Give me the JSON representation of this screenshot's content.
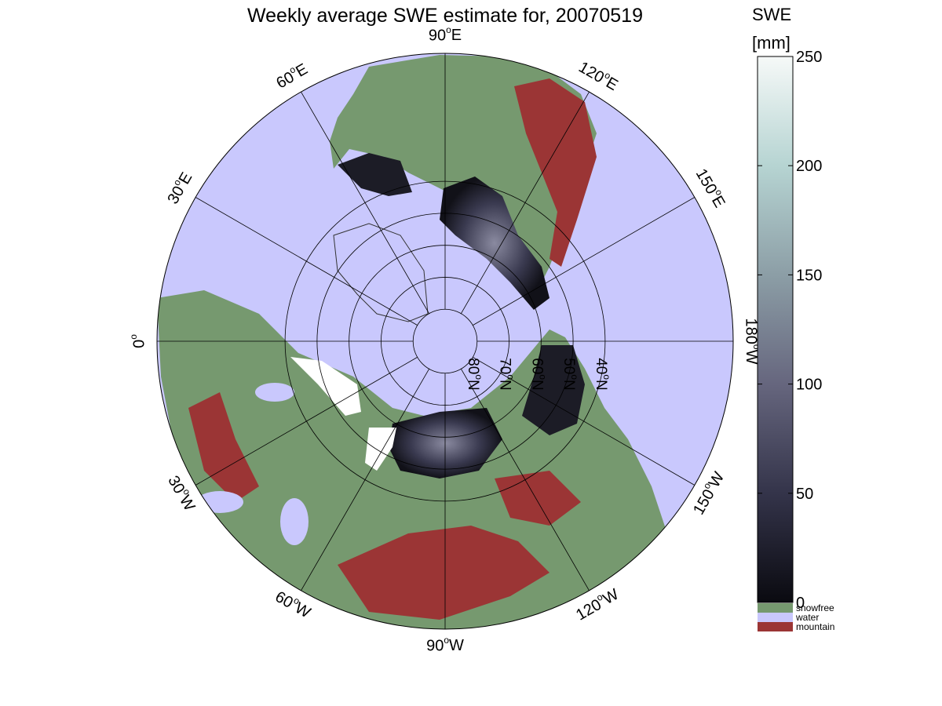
{
  "title": "Weekly average SWE estimate for, 20070519",
  "colorbar": {
    "title_line1": "SWE",
    "title_line2": "[mm]",
    "range": [
      0,
      250
    ],
    "ticks": [
      {
        "value": 0,
        "label": "0"
      },
      {
        "value": 50,
        "label": "50"
      },
      {
        "value": 100,
        "label": "100"
      },
      {
        "value": 150,
        "label": "150"
      },
      {
        "value": 200,
        "label": "200"
      },
      {
        "value": 250,
        "label": "250"
      }
    ],
    "gradient_colors": [
      "#0a0a10",
      "#34344a",
      "#66667e",
      "#8c9ea6",
      "#b6d4d2",
      "#f6f9f8"
    ]
  },
  "categories": [
    {
      "name": "snowfree",
      "color": "#76996f"
    },
    {
      "name": "water",
      "color": "#c9c8fd"
    },
    {
      "name": "mountain",
      "color": "#9b3535"
    }
  ],
  "map": {
    "projection": "north polar stereographic",
    "longitude_labels": [
      {
        "label": "90",
        "suffix": "W",
        "lon": -90
      },
      {
        "label": "60",
        "suffix": "W",
        "lon": -60
      },
      {
        "label": "30",
        "suffix": "W",
        "lon": -30
      },
      {
        "label": "0",
        "suffix": "",
        "lon": 0
      },
      {
        "label": "30",
        "suffix": "E",
        "lon": 30
      },
      {
        "label": "60",
        "suffix": "E",
        "lon": 60
      },
      {
        "label": "90",
        "suffix": "E",
        "lon": 90
      },
      {
        "label": "120",
        "suffix": "E",
        "lon": 120
      },
      {
        "label": "150",
        "suffix": "E",
        "lon": 150
      },
      {
        "label": "180",
        "suffix": "W",
        "lon": 180
      },
      {
        "label": "150",
        "suffix": "W",
        "lon": -150
      },
      {
        "label": "120",
        "suffix": "W",
        "lon": -120
      }
    ],
    "latitude_labels": [
      {
        "label": "80",
        "suffix": "N",
        "lat": 80
      },
      {
        "label": "70",
        "suffix": "N",
        "lat": 70
      },
      {
        "label": "60",
        "suffix": "N",
        "lat": 60
      },
      {
        "label": "50",
        "suffix": "N",
        "lat": 50
      },
      {
        "label": "40",
        "suffix": "N",
        "lat": 40
      }
    ]
  }
}
